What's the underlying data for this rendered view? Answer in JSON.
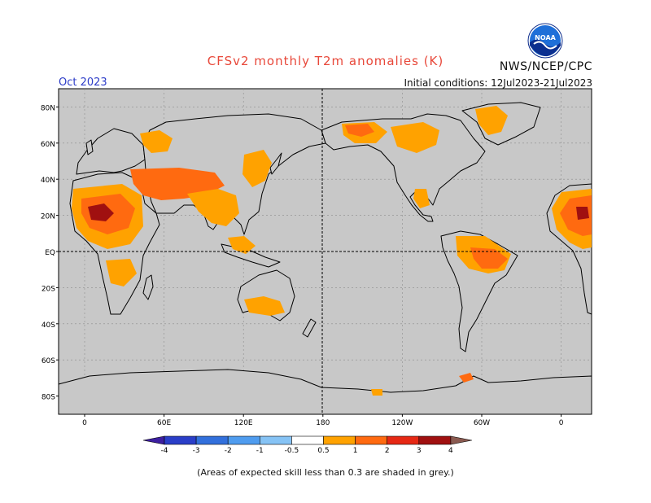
{
  "title": "CFSv2 monthly T2m anomalies (K)",
  "organization": "NWS/NCEP/CPC",
  "logo_text": "NOAA",
  "valid_month": "Oct 2023",
  "initial_conditions": "Initial conditions: 12Jul2023-21Jul2023",
  "footnote": "(Areas of expected skill less than 0.3 are shaded in grey.)",
  "colors": {
    "ocean_bg": "#c8c8c8",
    "coastline": "#000000",
    "title": "#e8483a",
    "month": "#2c3cc8"
  },
  "map": {
    "lat_ticks": [
      "80N",
      "60N",
      "40N",
      "20N",
      "EQ",
      "20S",
      "40S",
      "60S",
      "80S"
    ],
    "lon_ticks": [
      "0",
      "60E",
      "120E",
      "180",
      "120W",
      "60W",
      "0"
    ]
  },
  "colorbar": {
    "boundaries": [
      "-4",
      "-3",
      "-2",
      "-1",
      "-0.5",
      "0.5",
      "1",
      "2",
      "3",
      "4"
    ],
    "colors": [
      "#3d1fa0",
      "#2a3ec8",
      "#3270dc",
      "#4f9cef",
      "#86c3f5",
      "#ffffff",
      "#ffa200",
      "#ff6a10",
      "#e62814",
      "#a01010",
      "#c89e90",
      "#8a5a50"
    ]
  }
}
